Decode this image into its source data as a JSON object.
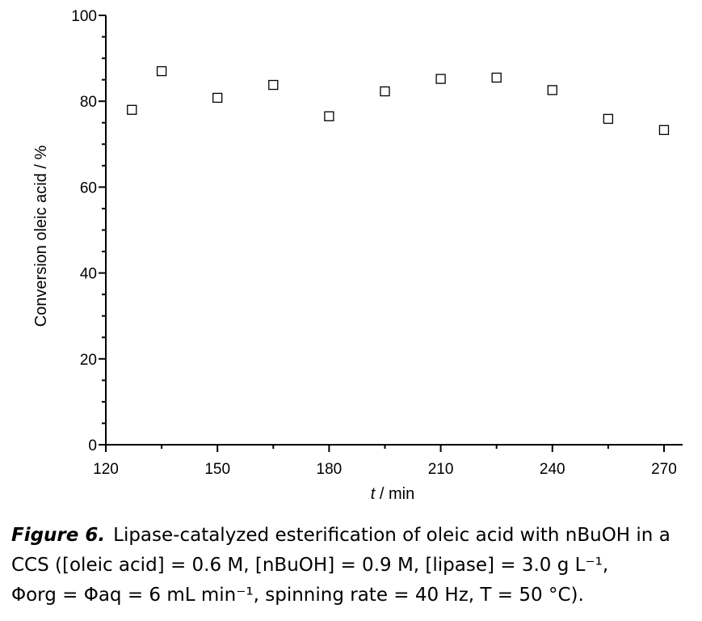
{
  "chart_data": {
    "type": "scatter",
    "title": "",
    "xlabel_var": "t",
    "xlabel_unit": " / min",
    "ylabel": "Conversion oleic acid / %",
    "xlim": [
      120,
      275
    ],
    "ylim": [
      0,
      100
    ],
    "x_ticks": [
      120,
      150,
      180,
      210,
      240,
      270
    ],
    "y_ticks": [
      0,
      20,
      40,
      60,
      80,
      100
    ],
    "x_minor_step": 15,
    "y_minor_step": 5,
    "grid": false,
    "marker": "open-square",
    "series": [
      {
        "x": [
          127,
          135,
          150,
          165,
          180,
          195,
          210,
          225,
          240,
          255,
          270
        ],
        "y": [
          78,
          87,
          80.8,
          83.8,
          76.5,
          82.3,
          85.2,
          85.5,
          82.6,
          75.9,
          73.3
        ]
      }
    ]
  },
  "caption": {
    "label": "Figure 6.",
    "line1": "Lipase-catalyzed esterification of oleic acid with nBuOH in a",
    "line2": "CCS ([oleic acid] = 0.6 M, [nBuOH] = 0.9 M, [lipase] = 3.0 g L⁻¹,",
    "line3": "Φorg = Φaq = 6 mL min⁻¹, spinning rate = 40 Hz, T = 50 °C)."
  }
}
